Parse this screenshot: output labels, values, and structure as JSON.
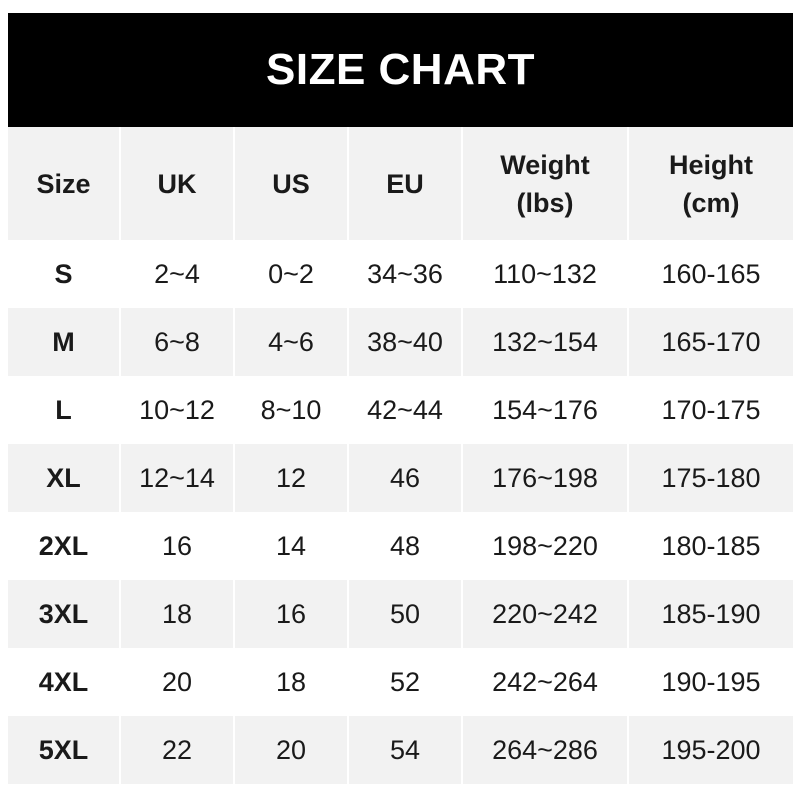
{
  "title": "SIZE CHART",
  "columns": [
    {
      "line1": "Size",
      "line2": ""
    },
    {
      "line1": "UK",
      "line2": ""
    },
    {
      "line1": "US",
      "line2": ""
    },
    {
      "line1": "EU",
      "line2": ""
    },
    {
      "line1": "Weight",
      "line2": "(lbs)"
    },
    {
      "line1": "Height",
      "line2": "(cm)"
    }
  ],
  "rows": [
    [
      "S",
      "2~4",
      "0~2",
      "34~36",
      "110~132",
      "160-165"
    ],
    [
      "M",
      "6~8",
      "4~6",
      "38~40",
      "132~154",
      "165-170"
    ],
    [
      "L",
      "10~12",
      "8~10",
      "42~44",
      "154~176",
      "170-175"
    ],
    [
      "XL",
      "12~14",
      "12",
      "46",
      "176~198",
      "175-180"
    ],
    [
      "2XL",
      "16",
      "14",
      "48",
      "198~220",
      "180-185"
    ],
    [
      "3XL",
      "18",
      "16",
      "50",
      "220~242",
      "185-190"
    ],
    [
      "4XL",
      "20",
      "18",
      "52",
      "242~264",
      "190-195"
    ],
    [
      "5XL",
      "22",
      "20",
      "54",
      "264~286",
      "195-200"
    ]
  ],
  "colors": {
    "banner": "#000000",
    "stripe": "#f2f2f2",
    "text": "#1a1a1a"
  }
}
